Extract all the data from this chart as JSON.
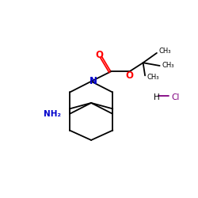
{
  "bg_color": "#ffffff",
  "bond_color": "#000000",
  "N_color": "#0000cc",
  "O_color": "#ff0000",
  "Cl_color": "#800080",
  "line_width": 1.3,
  "xlim": [
    0,
    10
  ],
  "ylim": [
    0,
    10
  ],
  "figsize": [
    2.5,
    2.5
  ],
  "dpi": 100
}
